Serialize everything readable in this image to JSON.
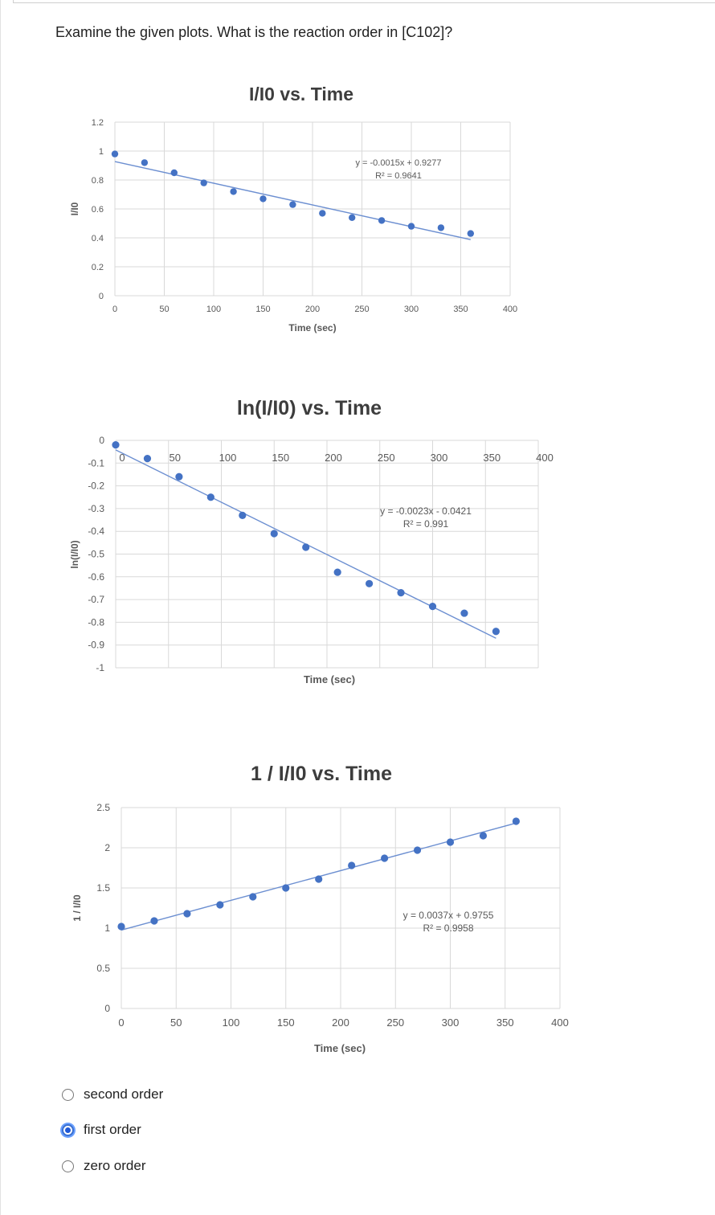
{
  "question": "Examine the given plots. What is the reaction order in [C102]?",
  "charts": [
    {
      "id": "chart1",
      "title": "I/I0 vs. Time",
      "xlabel": "Time (sec)",
      "ylabel": "I/I0",
      "equation": "y = -0.0015x + 0.9277",
      "r2": "R² = 0.9641"
    },
    {
      "id": "chart2",
      "title": "ln(I/I0) vs. Time",
      "xlabel": "Time (sec)",
      "ylabel": "ln(I/I0)",
      "equation": "y = -0.0023x - 0.0421",
      "r2": "R² = 0.991"
    },
    {
      "id": "chart3",
      "title": "1 / I/I0 vs. Time",
      "xlabel": "Time (sec)",
      "ylabel": "1 / I/I0",
      "equation": "y = 0.0037x + 0.9755",
      "r2": "R² = 0.9958"
    }
  ],
  "chart_data": [
    {
      "type": "scatter",
      "title": "I/I0 vs. Time",
      "xlabel": "Time (sec)",
      "ylabel": "I/I0",
      "xlim": [
        0,
        400
      ],
      "ylim": [
        0,
        1.2
      ],
      "xticks": [
        "0",
        "50",
        "100",
        "150",
        "200",
        "250",
        "300",
        "350",
        "400"
      ],
      "yticks": [
        "0",
        "0.2",
        "0.4",
        "0.6",
        "0.8",
        "1",
        "1.2"
      ],
      "x": [
        0,
        30,
        60,
        90,
        120,
        150,
        180,
        210,
        240,
        270,
        300,
        330,
        360
      ],
      "y": [
        0.98,
        0.92,
        0.85,
        0.78,
        0.72,
        0.67,
        0.63,
        0.57,
        0.54,
        0.52,
        0.48,
        0.47,
        0.43
      ],
      "trendline": {
        "slope": -0.0015,
        "intercept": 0.9277,
        "x_range": [
          0,
          360
        ]
      },
      "grid": true,
      "legend": "none",
      "color": "#4472c4"
    },
    {
      "type": "scatter",
      "title": "ln(I/I0) vs. Time",
      "xlabel": "Time (sec)",
      "ylabel": "ln(I/I0)",
      "xlim": [
        0,
        400
      ],
      "ylim": [
        -1,
        0
      ],
      "xticks": [
        "0",
        "50",
        "100",
        "150",
        "200",
        "250",
        "300",
        "350",
        "400"
      ],
      "yticks": [
        "0",
        "-0.1",
        "-0.2",
        "-0.3",
        "-0.4",
        "-0.5",
        "-0.6",
        "-0.7",
        "-0.8",
        "-0.9",
        "-1"
      ],
      "x": [
        0,
        30,
        60,
        90,
        120,
        150,
        180,
        210,
        240,
        270,
        300,
        330,
        360
      ],
      "y": [
        -0.02,
        -0.08,
        -0.16,
        -0.25,
        -0.33,
        -0.41,
        -0.47,
        -0.58,
        -0.63,
        -0.67,
        -0.73,
        -0.76,
        -0.84
      ],
      "trendline": {
        "slope": -0.0023,
        "intercept": -0.0421,
        "x_range": [
          0,
          360
        ]
      },
      "grid": true,
      "legend": "none",
      "color": "#4472c4"
    },
    {
      "type": "scatter",
      "title": "1 / I/I0 vs. Time",
      "xlabel": "Time (sec)",
      "ylabel": "1 / I/I0",
      "xlim": [
        0,
        400
      ],
      "ylim": [
        0,
        2.5
      ],
      "xticks": [
        "0",
        "50",
        "100",
        "150",
        "200",
        "250",
        "300",
        "350",
        "400"
      ],
      "yticks": [
        "0",
        "0.5",
        "1",
        "1.5",
        "2",
        "2.5"
      ],
      "x": [
        0,
        30,
        60,
        90,
        120,
        150,
        180,
        210,
        240,
        270,
        300,
        330,
        360
      ],
      "y": [
        1.02,
        1.09,
        1.18,
        1.29,
        1.39,
        1.5,
        1.61,
        1.78,
        1.87,
        1.97,
        2.07,
        2.15,
        2.33
      ],
      "trendline": {
        "slope": 0.0037,
        "intercept": 0.9755,
        "x_range": [
          0,
          360
        ]
      },
      "grid": true,
      "legend": "none",
      "color": "#4472c4"
    }
  ],
  "options": [
    {
      "label": "second order",
      "selected": false
    },
    {
      "label": "first order",
      "selected": true
    },
    {
      "label": "zero order",
      "selected": false
    }
  ],
  "colors": {
    "marker": "#4472c4",
    "gridline": "#d9d9d9",
    "selected_radio": "#1f58d6"
  }
}
